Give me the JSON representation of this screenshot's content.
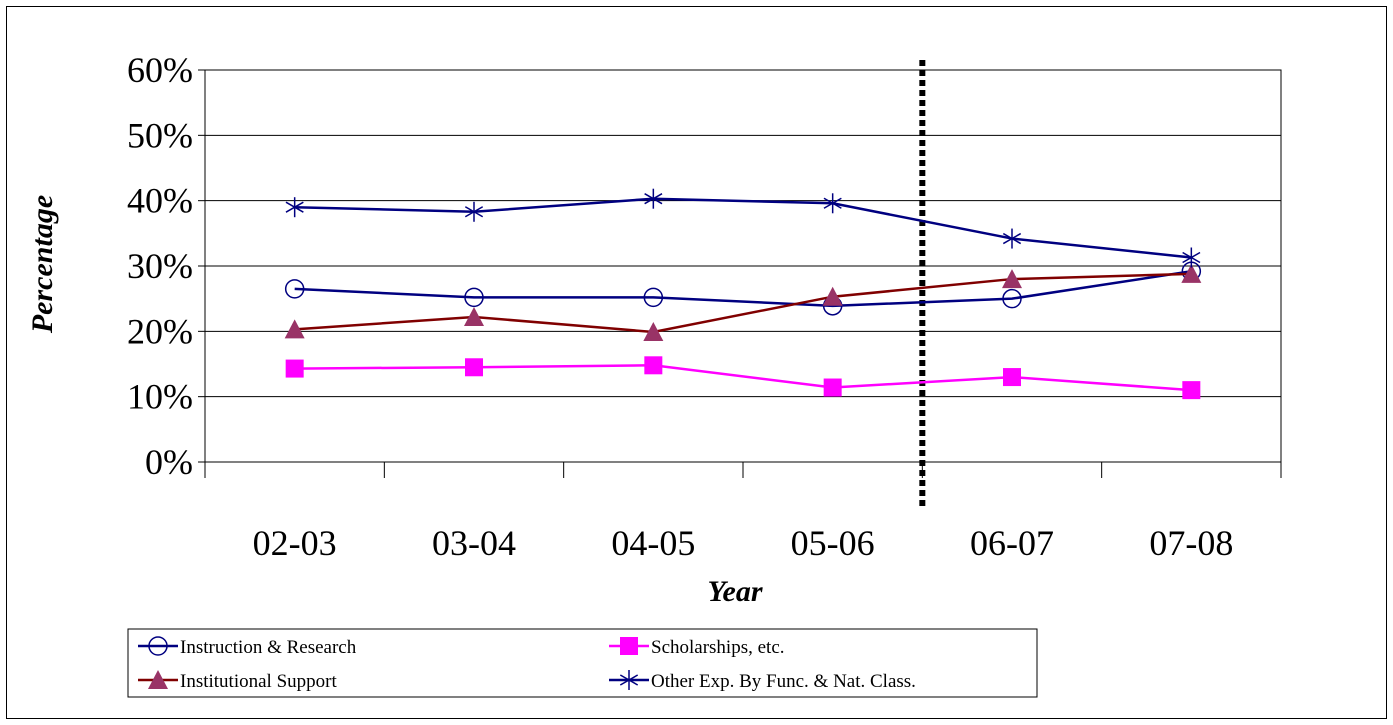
{
  "chart_data": {
    "type": "line",
    "title": "",
    "xlabel": "Year",
    "ylabel": "Percentage",
    "categories": [
      "02-03",
      "03-04",
      "04-05",
      "05-06",
      "06-07",
      "07-08"
    ],
    "y_ticks": [
      "0%",
      "10%",
      "20%",
      "30%",
      "40%",
      "50%",
      "60%"
    ],
    "ylim": [
      0,
      60
    ],
    "grid": true,
    "legend_position": "bottom",
    "divider_between": [
      "05-06",
      "06-07"
    ],
    "series": [
      {
        "name": "Instruction & Research",
        "values": [
          26.5,
          25.2,
          25.2,
          23.9,
          25.0,
          29.2
        ],
        "color": "#000080",
        "marker": "circle"
      },
      {
        "name": "Scholarships, etc.",
        "values": [
          14.3,
          14.5,
          14.8,
          11.4,
          13.0,
          11.0
        ],
        "color": "#ff00ff",
        "marker": "square"
      },
      {
        "name": "Institutional Support",
        "values": [
          20.3,
          22.2,
          19.9,
          25.3,
          28.0,
          28.8
        ],
        "color": "#800000",
        "marker": "triangle",
        "marker_color": "#993366"
      },
      {
        "name": "Other Exp. By Func. & Nat. Class.",
        "values": [
          39.0,
          38.3,
          40.3,
          39.6,
          34.2,
          31.3
        ],
        "color": "#000080",
        "marker": "asterisk"
      }
    ]
  }
}
